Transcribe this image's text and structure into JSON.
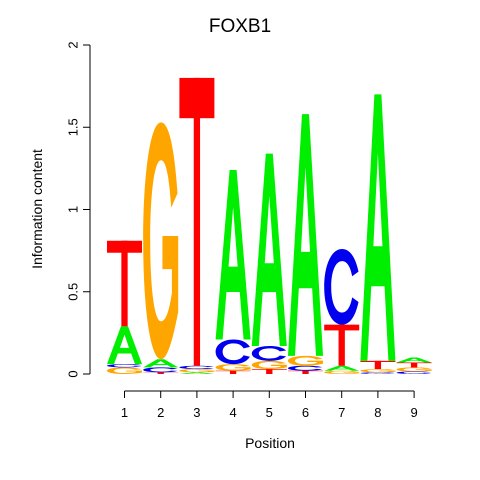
{
  "chart_data": {
    "type": "sequence-logo",
    "title": "FOXB1",
    "xlabel": "Position",
    "ylabel": "Information content",
    "ylim": [
      0,
      2
    ],
    "y_ticks": [
      "0",
      "0.5",
      "1",
      "1.5",
      "2"
    ],
    "x_ticks": [
      "1",
      "2",
      "3",
      "4",
      "5",
      "6",
      "7",
      "8",
      "9"
    ],
    "colors": {
      "A": "#00ee00",
      "C": "#0000ee",
      "G": "#ffa500",
      "T": "#ff0000"
    },
    "positions": [
      {
        "position": 1,
        "stack": [
          {
            "base": "G",
            "height": 0.04
          },
          {
            "base": "C",
            "height": 0.02
          },
          {
            "base": "A",
            "height": 0.23
          },
          {
            "base": "T",
            "height": 0.52
          }
        ]
      },
      {
        "position": 2,
        "stack": [
          {
            "base": "T",
            "height": 0.01
          },
          {
            "base": "C",
            "height": 0.03
          },
          {
            "base": "A",
            "height": 0.05
          },
          {
            "base": "G",
            "height": 1.44
          }
        ]
      },
      {
        "position": 3,
        "stack": [
          {
            "base": "A",
            "height": 0.01
          },
          {
            "base": "G",
            "height": 0.02
          },
          {
            "base": "C",
            "height": 0.02
          },
          {
            "base": "T",
            "height": 1.75
          }
        ]
      },
      {
        "position": 4,
        "stack": [
          {
            "base": "T",
            "height": 0.02
          },
          {
            "base": "G",
            "height": 0.04
          },
          {
            "base": "C",
            "height": 0.15
          },
          {
            "base": "A",
            "height": 1.03
          }
        ]
      },
      {
        "position": 5,
        "stack": [
          {
            "base": "T",
            "height": 0.03
          },
          {
            "base": "G",
            "height": 0.05
          },
          {
            "base": "C",
            "height": 0.09
          },
          {
            "base": "A",
            "height": 1.17
          }
        ]
      },
      {
        "position": 6,
        "stack": [
          {
            "base": "T",
            "height": 0.02
          },
          {
            "base": "C",
            "height": 0.03
          },
          {
            "base": "G",
            "height": 0.06
          },
          {
            "base": "A",
            "height": 1.47
          }
        ]
      },
      {
        "position": 7,
        "stack": [
          {
            "base": "G",
            "height": 0.02
          },
          {
            "base": "A",
            "height": 0.03
          },
          {
            "base": "T",
            "height": 0.25
          },
          {
            "base": "C",
            "height": 0.46
          }
        ]
      },
      {
        "position": 8,
        "stack": [
          {
            "base": "C",
            "height": 0.01
          },
          {
            "base": "G",
            "height": 0.02
          },
          {
            "base": "T",
            "height": 0.05
          },
          {
            "base": "A",
            "height": 1.62
          }
        ]
      },
      {
        "position": 9,
        "stack": [
          {
            "base": "C",
            "height": 0.015
          },
          {
            "base": "G",
            "height": 0.025
          },
          {
            "base": "T",
            "height": 0.03
          },
          {
            "base": "A",
            "height": 0.03
          }
        ]
      }
    ]
  }
}
